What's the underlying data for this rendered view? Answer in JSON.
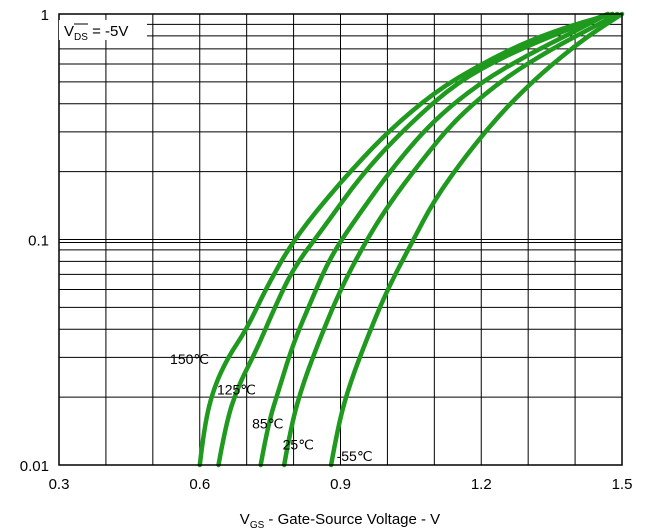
{
  "chart_data": {
    "type": "line",
    "annotation": {
      "prefix": "V",
      "sub": "DS",
      "rest": " = -5V"
    },
    "xlabel": {
      "prefix": "V",
      "sub": "GS",
      "rest": " - Gate-Source Voltage - V"
    },
    "ylabel": "",
    "xlim": [
      0.3,
      1.5
    ],
    "ylim": [
      0.01,
      1
    ],
    "y_scale": "log",
    "grid": true,
    "x_ticks": [
      "0.3",
      "0.6",
      "0.9",
      "1.2",
      "1.5"
    ],
    "y_ticks": [
      "0.01",
      "0.1",
      "1"
    ],
    "line_color": "#1f9a1f",
    "series": [
      {
        "label": "150℃",
        "points": [
          [
            0.6,
            0.01
          ],
          [
            0.61,
            0.015
          ],
          [
            0.63,
            0.022
          ],
          [
            0.66,
            0.03
          ],
          [
            0.7,
            0.04
          ],
          [
            0.74,
            0.06
          ],
          [
            0.8,
            0.1
          ],
          [
            0.9,
            0.18
          ],
          [
            1.0,
            0.3
          ],
          [
            1.1,
            0.45
          ],
          [
            1.2,
            0.6
          ],
          [
            1.3,
            0.76
          ],
          [
            1.4,
            0.9
          ],
          [
            1.48,
            1.0
          ]
        ]
      },
      {
        "label": "125℃",
        "points": [
          [
            0.64,
            0.01
          ],
          [
            0.655,
            0.015
          ],
          [
            0.68,
            0.022
          ],
          [
            0.72,
            0.032
          ],
          [
            0.76,
            0.05
          ],
          [
            0.8,
            0.075
          ],
          [
            0.86,
            0.11
          ],
          [
            0.95,
            0.2
          ],
          [
            1.05,
            0.33
          ],
          [
            1.15,
            0.5
          ],
          [
            1.25,
            0.65
          ],
          [
            1.35,
            0.8
          ],
          [
            1.47,
            1.0
          ]
        ]
      },
      {
        "label": "85℃",
        "points": [
          [
            0.73,
            0.01
          ],
          [
            0.745,
            0.015
          ],
          [
            0.77,
            0.022
          ],
          [
            0.8,
            0.035
          ],
          [
            0.84,
            0.055
          ],
          [
            0.88,
            0.085
          ],
          [
            0.94,
            0.13
          ],
          [
            1.02,
            0.22
          ],
          [
            1.1,
            0.34
          ],
          [
            1.2,
            0.5
          ],
          [
            1.3,
            0.66
          ],
          [
            1.4,
            0.84
          ],
          [
            1.47,
            1.0
          ]
        ]
      },
      {
        "label": "25℃",
        "points": [
          [
            0.78,
            0.01
          ],
          [
            0.795,
            0.015
          ],
          [
            0.82,
            0.023
          ],
          [
            0.86,
            0.038
          ],
          [
            0.9,
            0.06
          ],
          [
            0.95,
            0.095
          ],
          [
            1.0,
            0.14
          ],
          [
            1.07,
            0.22
          ],
          [
            1.15,
            0.35
          ],
          [
            1.25,
            0.52
          ],
          [
            1.35,
            0.7
          ],
          [
            1.45,
            0.9
          ],
          [
            1.49,
            1.0
          ]
        ]
      },
      {
        "label": "-55℃",
        "points": [
          [
            0.88,
            0.01
          ],
          [
            0.895,
            0.015
          ],
          [
            0.92,
            0.023
          ],
          [
            0.96,
            0.038
          ],
          [
            1.0,
            0.06
          ],
          [
            1.05,
            0.095
          ],
          [
            1.1,
            0.15
          ],
          [
            1.17,
            0.24
          ],
          [
            1.25,
            0.38
          ],
          [
            1.33,
            0.55
          ],
          [
            1.42,
            0.78
          ],
          [
            1.5,
            1.0
          ]
        ]
      }
    ]
  }
}
